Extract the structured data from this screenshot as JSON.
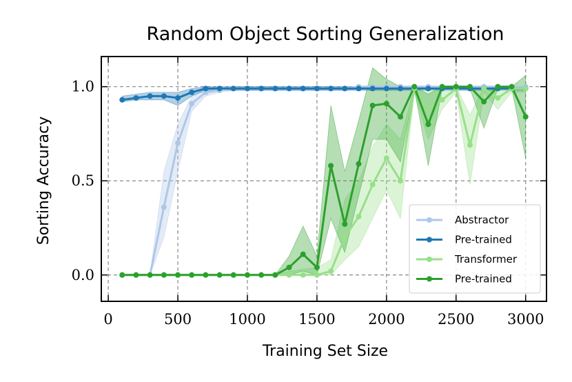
{
  "chart_data": {
    "type": "line",
    "title": "Random Object Sorting Generalization",
    "xlabel": "Training Set Size",
    "ylabel": "Sorting Accuracy",
    "xlim": [
      -50,
      3150
    ],
    "ylim": [
      -0.14,
      1.16
    ],
    "xticks": [
      0,
      500,
      1000,
      1500,
      2000,
      2500,
      3000
    ],
    "xtick_labels": [
      "0",
      "500",
      "1000",
      "1500",
      "2000",
      "2500",
      "3000"
    ],
    "yticks": [
      0.0,
      0.5,
      1.0
    ],
    "ytick_labels": [
      "0.0",
      "0.5",
      "1.0"
    ],
    "grid": true,
    "legend_position": "bottom-right",
    "x": [
      100,
      200,
      300,
      400,
      500,
      600,
      700,
      800,
      900,
      1000,
      1100,
      1200,
      1300,
      1400,
      1500,
      1600,
      1700,
      1800,
      1900,
      2000,
      2100,
      2200,
      2300,
      2400,
      2500,
      2600,
      2700,
      2800,
      2900,
      3000
    ],
    "series": [
      {
        "name": "Abstractor",
        "color": "#aec7e8",
        "values": [
          0,
          0,
          0,
          0.36,
          0.7,
          0.91,
          0.97,
          0.98,
          0.99,
          0.99,
          0.99,
          0.99,
          0.99,
          0.99,
          0.99,
          0.99,
          0.99,
          1.0,
          1.0,
          1.0,
          1.0,
          1.0,
          1.0,
          1.0,
          1.0,
          1.0,
          1.0,
          1.0,
          1.0,
          1.0
        ],
        "lower": [
          0,
          0,
          0,
          0.2,
          0.55,
          0.87,
          0.95,
          0.97,
          0.98,
          0.98,
          0.98,
          0.98,
          0.98,
          0.98,
          0.98,
          0.98,
          0.98,
          0.99,
          0.99,
          0.99,
          0.99,
          0.99,
          0.99,
          0.99,
          0.99,
          0.99,
          0.99,
          0.99,
          0.99,
          0.99
        ],
        "upper": [
          0,
          0,
          0,
          0.55,
          0.8,
          0.95,
          0.99,
          0.99,
          1.0,
          1.0,
          1.0,
          1.0,
          1.0,
          1.0,
          1.0,
          1.0,
          1.0,
          1.0,
          1.0,
          1.0,
          1.0,
          1.0,
          1.0,
          1.0,
          1.0,
          1.0,
          1.0,
          1.0,
          1.0,
          1.0
        ]
      },
      {
        "name": "Pre-trained",
        "color": "#1f77b4",
        "values": [
          0.93,
          0.94,
          0.95,
          0.95,
          0.94,
          0.97,
          0.99,
          0.99,
          0.99,
          0.99,
          0.99,
          0.99,
          0.99,
          0.99,
          0.99,
          0.99,
          0.99,
          0.99,
          0.99,
          0.99,
          0.99,
          0.99,
          0.99,
          0.99,
          0.99,
          0.99,
          0.99,
          0.99,
          0.99,
          0.99
        ],
        "lower": [
          0.92,
          0.93,
          0.93,
          0.93,
          0.9,
          0.95,
          0.98,
          0.98,
          0.98,
          0.98,
          0.98,
          0.98,
          0.98,
          0.98,
          0.98,
          0.98,
          0.98,
          0.98,
          0.98,
          0.98,
          0.98,
          0.98,
          0.98,
          0.98,
          0.98,
          0.98,
          0.98,
          0.98,
          0.98,
          0.98
        ],
        "upper": [
          0.95,
          0.96,
          0.97,
          0.97,
          0.97,
          0.99,
          1.0,
          1.0,
          1.0,
          1.0,
          1.0,
          1.0,
          1.0,
          1.0,
          1.0,
          1.0,
          1.0,
          1.0,
          1.0,
          1.0,
          1.0,
          1.0,
          1.0,
          1.0,
          1.0,
          1.0,
          1.0,
          1.0,
          1.0,
          1.0
        ]
      },
      {
        "name": "Transformer",
        "color": "#98df8a",
        "values": [
          0,
          0,
          0,
          0,
          0,
          0,
          0,
          0,
          0,
          0,
          0,
          0,
          0,
          0,
          0,
          0.02,
          0.2,
          0.31,
          0.48,
          0.62,
          0.5,
          0.99,
          0.88,
          0.93,
          0.99,
          0.69,
          0.99,
          0.94,
          0.99,
          0.99
        ],
        "lower": [
          0,
          0,
          0,
          0,
          0,
          0,
          0,
          0,
          0,
          0,
          0,
          0,
          0,
          0,
          0,
          0,
          0.08,
          0.15,
          0.3,
          0.45,
          0.3,
          0.97,
          0.72,
          0.88,
          0.97,
          0.48,
          0.97,
          0.88,
          0.97,
          0.97
        ],
        "upper": [
          0,
          0,
          0,
          0,
          0,
          0,
          0,
          0,
          0,
          0,
          0,
          0,
          0.02,
          0.03,
          0.04,
          0.08,
          0.4,
          0.5,
          0.68,
          0.8,
          0.72,
          1.0,
          0.98,
          0.99,
          1.0,
          0.85,
          1.0,
          0.98,
          1.0,
          1.0
        ]
      },
      {
        "name": "Pre-trained",
        "color": "#2ca02c",
        "values": [
          0,
          0,
          0,
          0,
          0,
          0,
          0,
          0,
          0,
          0,
          0,
          0,
          0.04,
          0.11,
          0.04,
          0.58,
          0.27,
          0.59,
          0.9,
          0.91,
          0.84,
          1.0,
          0.8,
          1.0,
          1.0,
          1.0,
          0.92,
          1.0,
          1.0,
          0.84
        ],
        "lower": [
          0,
          0,
          0,
          0,
          0,
          0,
          0,
          0,
          0,
          0,
          0,
          0,
          0.0,
          0.02,
          0.0,
          0.3,
          0.12,
          0.42,
          0.72,
          0.72,
          0.6,
          0.99,
          0.58,
          0.99,
          0.99,
          0.99,
          0.78,
          0.99,
          0.99,
          0.62
        ],
        "upper": [
          0,
          0,
          0,
          0,
          0,
          0,
          0,
          0,
          0,
          0,
          0,
          0,
          0.1,
          0.26,
          0.1,
          0.9,
          0.55,
          0.82,
          1.1,
          1.04,
          1.0,
          1.0,
          0.96,
          1.0,
          1.0,
          1.0,
          1.0,
          1.0,
          1.0,
          1.06
        ]
      }
    ]
  }
}
